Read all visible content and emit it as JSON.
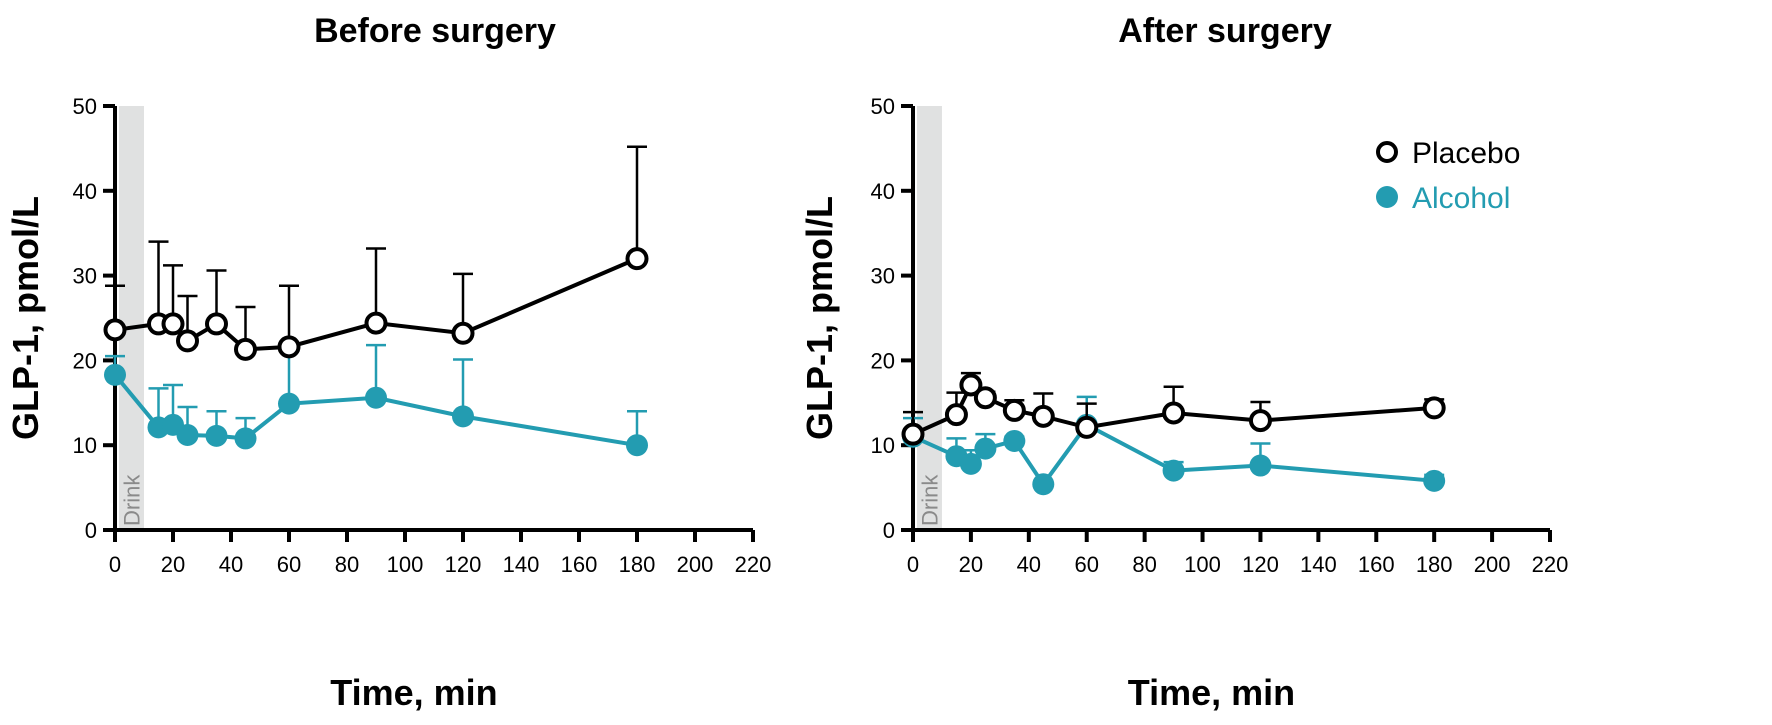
{
  "chart_data": [
    {
      "type": "line",
      "title": "Before surgery",
      "xlabel": "Time, min",
      "ylabel": "GLP-1, pmol/L",
      "xlim": [
        0,
        220
      ],
      "ylim": [
        0,
        50
      ],
      "xticks": [
        0,
        20,
        40,
        60,
        80,
        100,
        120,
        140,
        160,
        180,
        200,
        220
      ],
      "yticks": [
        0,
        10,
        20,
        30,
        40,
        50
      ],
      "annotation": "Drink",
      "drink_window": [
        0,
        10
      ],
      "series": [
        {
          "name": "Placebo",
          "x": [
            0,
            15,
            20,
            25,
            35,
            45,
            60,
            90,
            120,
            180
          ],
          "y": [
            23.6,
            24.3,
            24.3,
            22.3,
            24.3,
            21.3,
            21.6,
            24.4,
            23.2,
            32.0
          ],
          "error_upper": [
            28.8,
            34.0,
            31.2,
            27.6,
            30.6,
            26.3,
            28.8,
            33.2,
            30.2,
            45.2
          ]
        },
        {
          "name": "Alcohol",
          "x": [
            0,
            15,
            20,
            25,
            35,
            45,
            60,
            90,
            120,
            180
          ],
          "y": [
            18.3,
            12.1,
            12.4,
            11.2,
            11.1,
            10.8,
            14.9,
            15.6,
            13.4,
            10.0
          ],
          "error_upper": [
            20.5,
            16.7,
            17.1,
            14.5,
            14.0,
            13.2,
            21.5,
            21.8,
            20.1,
            14.0
          ]
        }
      ]
    },
    {
      "type": "line",
      "title": "After surgery",
      "xlabel": "Time, min",
      "ylabel": "GLP-1, pmol/L",
      "xlim": [
        0,
        220
      ],
      "ylim": [
        0,
        50
      ],
      "xticks": [
        0,
        20,
        40,
        60,
        80,
        100,
        120,
        140,
        160,
        180,
        200,
        220
      ],
      "yticks": [
        0,
        10,
        20,
        30,
        40,
        50
      ],
      "annotation": "Drink",
      "drink_window": [
        0,
        10
      ],
      "legend": "top-right",
      "series": [
        {
          "name": "Placebo",
          "x": [
            0,
            15,
            20,
            25,
            35,
            45,
            60,
            90,
            120,
            180
          ],
          "y": [
            11.3,
            13.6,
            17.1,
            15.6,
            14.1,
            13.4,
            12.1,
            13.8,
            12.9,
            14.4
          ],
          "error_upper": [
            13.9,
            16.2,
            18.5,
            16.3,
            15.3,
            16.1,
            14.9,
            16.9,
            15.1,
            15.4
          ]
        },
        {
          "name": "Alcohol",
          "x": [
            0,
            15,
            20,
            25,
            35,
            45,
            60,
            90,
            120,
            180
          ],
          "y": [
            11.0,
            8.7,
            7.8,
            9.6,
            10.5,
            5.4,
            12.4,
            7.0,
            7.6,
            5.8
          ],
          "error_upper": [
            13.2,
            10.8,
            9.4,
            11.3,
            11.0,
            5.8,
            15.7,
            8.0,
            10.2,
            6.5
          ]
        }
      ]
    }
  ],
  "colors": {
    "placebo": "#000000",
    "alcohol": "#239cb1",
    "drink": "#e0e1e1"
  }
}
